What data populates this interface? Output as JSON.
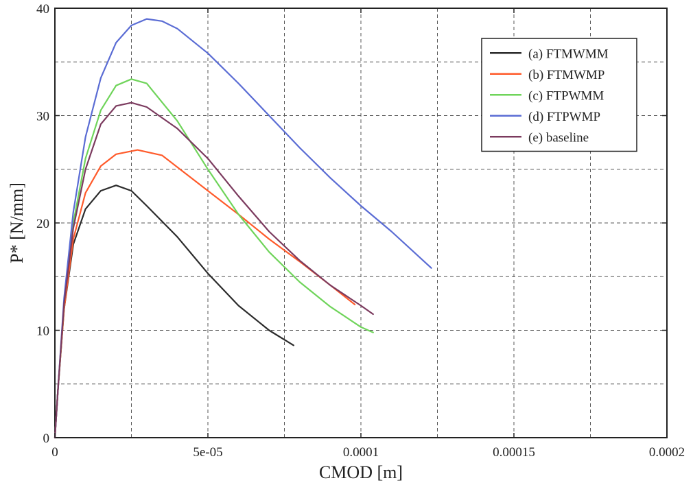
{
  "chart_data": {
    "type": "line",
    "xlabel": "CMOD [m]",
    "ylabel": "P* [N/mm]",
    "xlim": [
      0,
      0.0002
    ],
    "ylim": [
      0,
      40
    ],
    "x_ticks": [
      {
        "value": 0,
        "label": "0"
      },
      {
        "value": 5e-05,
        "label": "5e-05"
      },
      {
        "value": 0.0001,
        "label": "0.0001"
      },
      {
        "value": 0.00015,
        "label": "0.00015"
      },
      {
        "value": 0.0002,
        "label": "0.0002"
      }
    ],
    "y_ticks": [
      {
        "value": 0,
        "label": "0"
      },
      {
        "value": 10,
        "label": "10"
      },
      {
        "value": 20,
        "label": "20"
      },
      {
        "value": 30,
        "label": "30"
      },
      {
        "value": 40,
        "label": "40"
      }
    ],
    "grid": true,
    "legend_position": "top-right",
    "series": [
      {
        "name": "(a) FTMWMM",
        "color": "#2b2b2b",
        "x": [
          0,
          1e-06,
          3e-06,
          6e-06,
          1e-05,
          1.5e-05,
          2e-05,
          2.5e-05,
          3e-05,
          4e-05,
          5e-05,
          6e-05,
          7e-05,
          7.8e-05
        ],
        "y": [
          0,
          4.5,
          12.0,
          18.0,
          21.3,
          23.0,
          23.5,
          23.0,
          21.6,
          18.7,
          15.3,
          12.3,
          10.0,
          8.6
        ]
      },
      {
        "name": "(b) FTMWMP",
        "color": "#ff5a2a",
        "x": [
          0,
          1e-06,
          3e-06,
          6e-06,
          1e-05,
          1.5e-05,
          2e-05,
          2.7e-05,
          3.5e-05,
          5e-05,
          6e-05,
          7e-05,
          8e-05,
          9e-05,
          9.8e-05
        ],
        "y": [
          0,
          4.5,
          12.0,
          18.5,
          22.8,
          25.3,
          26.4,
          26.8,
          26.3,
          23.0,
          20.8,
          18.5,
          16.4,
          14.2,
          12.4
        ]
      },
      {
        "name": "(c) FTPWMM",
        "color": "#6fd45a",
        "x": [
          0,
          1e-06,
          3e-06,
          6e-06,
          1e-05,
          1.5e-05,
          2e-05,
          2.5e-05,
          3e-05,
          4e-05,
          5e-05,
          6e-05,
          7e-05,
          8e-05,
          9e-05,
          0.0001,
          0.000104
        ],
        "y": [
          0,
          4.5,
          12.5,
          20.0,
          26.0,
          30.5,
          32.8,
          33.4,
          33.0,
          29.5,
          25.0,
          20.8,
          17.3,
          14.5,
          12.2,
          10.3,
          9.8
        ]
      },
      {
        "name": "(d) FTPWMP",
        "color": "#5a6cd4",
        "x": [
          0,
          1e-06,
          3e-06,
          6e-06,
          1e-05,
          1.5e-05,
          2e-05,
          2.5e-05,
          3e-05,
          3.5e-05,
          4e-05,
          5e-05,
          6e-05,
          7e-05,
          8e-05,
          9e-05,
          0.0001,
          0.00011,
          0.000123
        ],
        "y": [
          0,
          4.5,
          13.0,
          21.0,
          28.0,
          33.5,
          36.8,
          38.4,
          39.0,
          38.8,
          38.1,
          35.8,
          33.0,
          30.0,
          27.0,
          24.2,
          21.6,
          19.2,
          15.8
        ]
      },
      {
        "name": "(e) baseline",
        "color": "#7b3a5e",
        "x": [
          0,
          1e-06,
          3e-06,
          6e-06,
          1e-05,
          1.5e-05,
          2e-05,
          2.5e-05,
          3e-05,
          4e-05,
          5e-05,
          6e-05,
          7e-05,
          8e-05,
          9e-05,
          0.0001,
          0.000104
        ],
        "y": [
          0,
          4.5,
          12.5,
          19.5,
          25.0,
          29.2,
          30.9,
          31.2,
          30.8,
          28.8,
          26.0,
          22.5,
          19.2,
          16.5,
          14.2,
          12.3,
          11.5
        ]
      }
    ]
  }
}
